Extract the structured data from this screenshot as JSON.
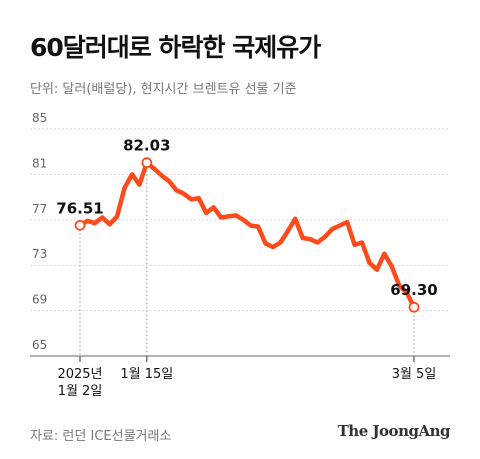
{
  "header": {
    "title": "60달러대로 하락한 국제유가",
    "subtitle": "단위: 달러(배럴당), 현지시간 브렌트유 선물 기준"
  },
  "footer": {
    "source": "자료: 런던 ICE선물거래소",
    "publisher": "The JoongAng"
  },
  "colors": {
    "line": "#ff4a1c",
    "marker_fill": "#ffffff",
    "grid": "#d9d9d9",
    "guide": "#999999"
  },
  "chart_data": {
    "type": "line",
    "title": "60달러대로 하락한 국제유가",
    "ylabel": "단위: 달러(배럴당)",
    "ylim": [
      65,
      85
    ],
    "yticks": [
      85,
      81,
      77,
      73,
      69,
      65
    ],
    "grid": true,
    "series": [
      {
        "values": [
          76.51,
          76.9,
          76.7,
          77.2,
          76.6,
          77.3,
          79.8,
          81.0,
          80.1,
          82.03,
          81.5,
          80.9,
          80.4,
          79.6,
          79.3,
          78.8,
          78.9,
          77.6,
          78.1,
          77.2,
          77.3,
          77.4,
          77.0,
          76.5,
          76.4,
          74.9,
          74.6,
          75.0,
          76.0,
          77.1,
          75.4,
          75.3,
          75.0,
          75.5,
          76.2,
          76.5,
          76.8,
          74.8,
          75.0,
          73.2,
          72.6,
          74.0,
          72.9,
          71.2,
          70.6,
          69.3
        ]
      }
    ],
    "x_labels": [
      {
        "index": 0,
        "lines": [
          "2025년",
          "1월 2일"
        ]
      },
      {
        "index": 9,
        "lines": [
          "1월 15일"
        ]
      },
      {
        "index": 45,
        "lines": [
          "3월 5일"
        ]
      }
    ],
    "annotations": [
      {
        "index": 0,
        "label": "76.51"
      },
      {
        "index": 9,
        "label": "82.03"
      },
      {
        "index": 45,
        "label": "69.30"
      }
    ]
  }
}
